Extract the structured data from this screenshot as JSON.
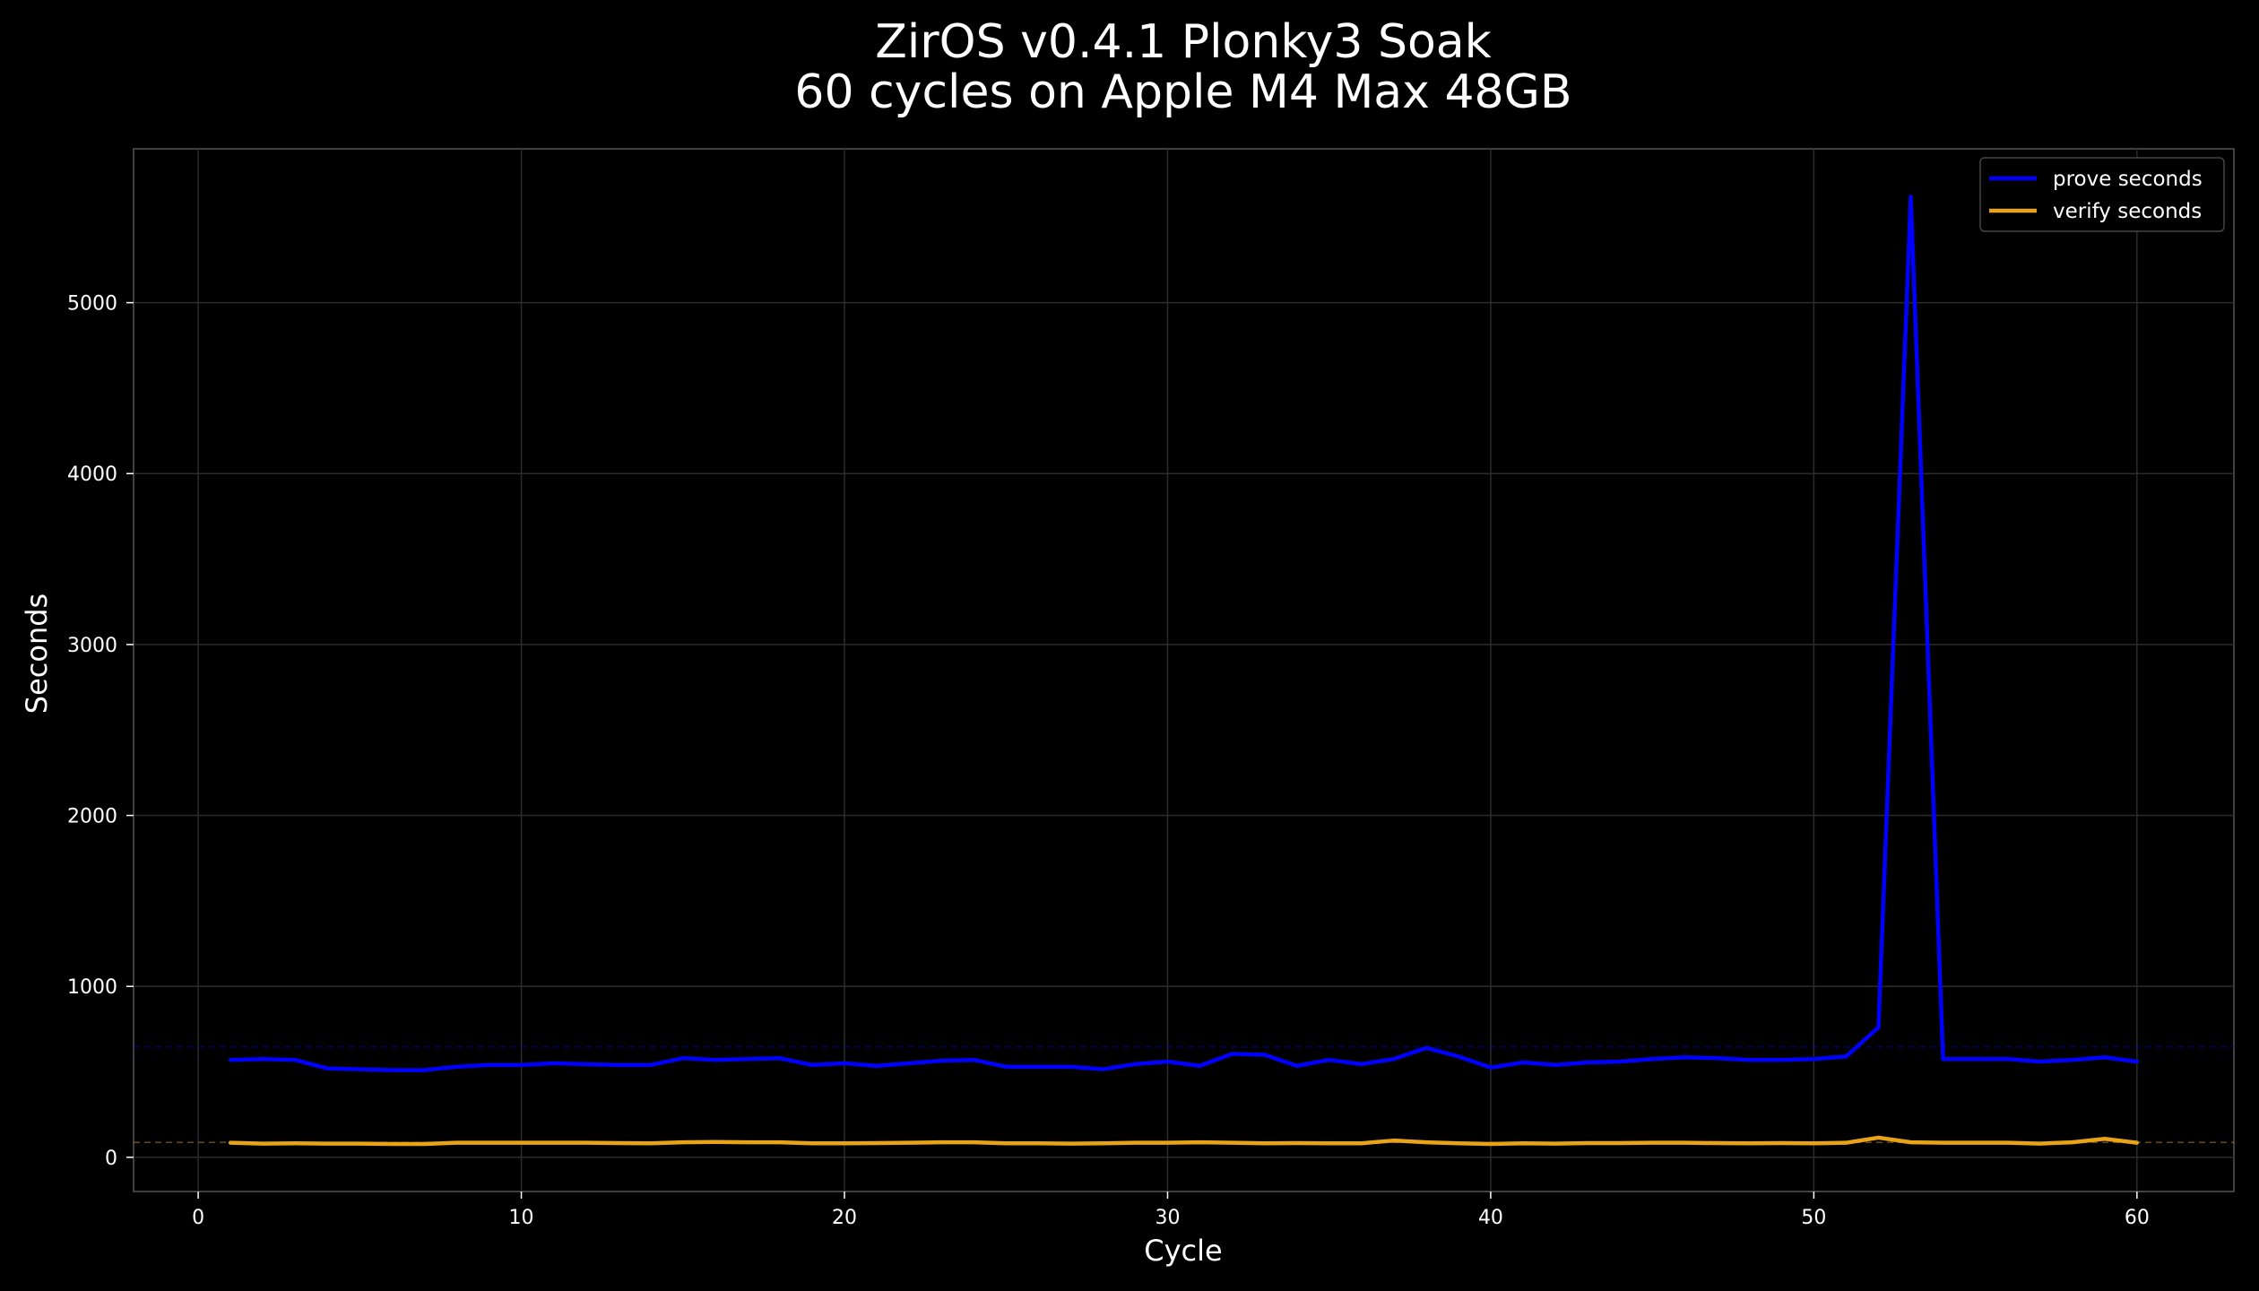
{
  "chart_data": {
    "type": "line",
    "title": "ZirOS v0.4.1 Plonky3 Soak",
    "subtitle": "60 cycles on Apple M4 Max 48GB",
    "xlabel": "Cycle",
    "ylabel": "Seconds",
    "xlim": [
      -2,
      63
    ],
    "ylim": [
      -200,
      5900
    ],
    "xticks": [
      0,
      10,
      20,
      30,
      40,
      50,
      60
    ],
    "yticks": [
      0,
      1000,
      2000,
      3000,
      4000,
      5000
    ],
    "grid": true,
    "legend_position": "top-right",
    "x": [
      1,
      2,
      3,
      4,
      5,
      6,
      7,
      8,
      9,
      10,
      11,
      12,
      13,
      14,
      15,
      16,
      17,
      18,
      19,
      20,
      21,
      22,
      23,
      24,
      25,
      26,
      27,
      28,
      29,
      30,
      31,
      32,
      33,
      34,
      35,
      36,
      37,
      38,
      39,
      40,
      41,
      42,
      43,
      44,
      45,
      46,
      47,
      48,
      49,
      50,
      51,
      52,
      53,
      54,
      55,
      56,
      57,
      58,
      59,
      60
    ],
    "series": [
      {
        "name": "prove seconds",
        "color": "#0000ff",
        "values": [
          570,
          575,
          570,
          520,
          515,
          510,
          510,
          530,
          540,
          540,
          550,
          545,
          540,
          540,
          580,
          570,
          575,
          580,
          540,
          550,
          535,
          550,
          565,
          570,
          530,
          530,
          530,
          515,
          545,
          560,
          535,
          605,
          600,
          535,
          570,
          545,
          575,
          640,
          590,
          525,
          555,
          540,
          555,
          560,
          575,
          585,
          580,
          570,
          570,
          575,
          590,
          760,
          5620,
          575,
          575,
          575,
          560,
          570,
          585,
          560
        ]
      },
      {
        "name": "verify seconds",
        "color": "#e8a317",
        "values": [
          85,
          80,
          82,
          80,
          80,
          78,
          78,
          85,
          85,
          85,
          85,
          85,
          83,
          82,
          88,
          90,
          88,
          88,
          82,
          82,
          83,
          85,
          88,
          88,
          82,
          82,
          80,
          82,
          85,
          85,
          88,
          85,
          82,
          83,
          82,
          82,
          98,
          88,
          82,
          78,
          82,
          80,
          83,
          83,
          85,
          85,
          83,
          82,
          83,
          82,
          85,
          115,
          88,
          85,
          85,
          85,
          80,
          88,
          108,
          85
        ]
      }
    ],
    "reference_lines": [
      {
        "axis": "y",
        "value": 645,
        "color": "#0000ff",
        "style": "dashed"
      },
      {
        "axis": "y",
        "value": 87,
        "color": "#e8a317",
        "style": "dashed"
      }
    ]
  }
}
